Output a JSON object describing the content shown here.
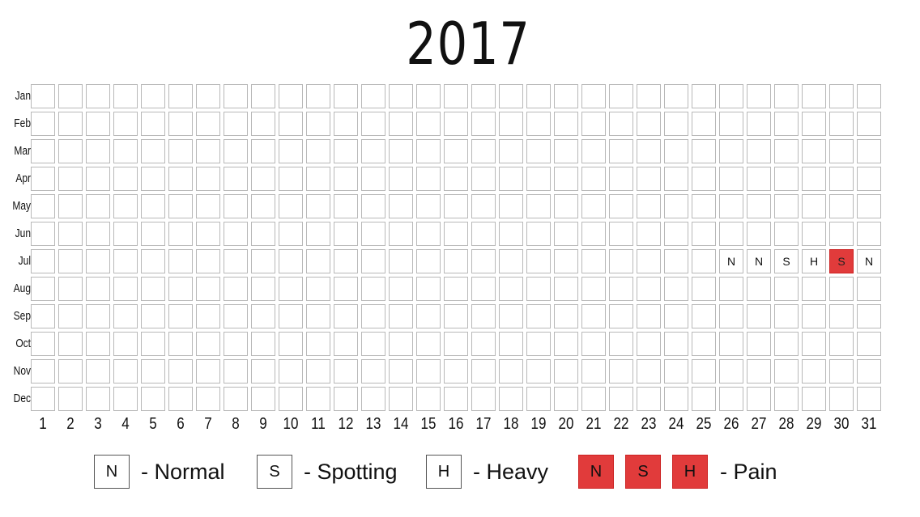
{
  "title": "2017",
  "months": [
    "Jan",
    "Feb",
    "Mar",
    "Apr",
    "May",
    "Jun",
    "Jul",
    "Aug",
    "Sep",
    "Oct",
    "Nov",
    "Dec"
  ],
  "days": [
    "1",
    "2",
    "3",
    "4",
    "5",
    "6",
    "7",
    "8",
    "9",
    "10",
    "11",
    "12",
    "13",
    "14",
    "15",
    "16",
    "17",
    "18",
    "19",
    "20",
    "21",
    "22",
    "23",
    "24",
    "25",
    "26",
    "27",
    "28",
    "29",
    "30",
    "31"
  ],
  "entries": [
    {
      "month": "Jul",
      "day": 26,
      "code": "N",
      "pain": false
    },
    {
      "month": "Jul",
      "day": 27,
      "code": "N",
      "pain": false
    },
    {
      "month": "Jul",
      "day": 28,
      "code": "S",
      "pain": false
    },
    {
      "month": "Jul",
      "day": 29,
      "code": "H",
      "pain": false
    },
    {
      "month": "Jul",
      "day": 30,
      "code": "S",
      "pain": true
    },
    {
      "month": "Jul",
      "day": 31,
      "code": "N",
      "pain": false
    }
  ],
  "legend": {
    "normal_code": "N",
    "normal_text": "- Normal",
    "spotting_code": "S",
    "spotting_text": "- Spotting",
    "heavy_code": "H",
    "heavy_text": "- Heavy",
    "pain_codes": [
      "N",
      "S",
      "H"
    ],
    "pain_text": "- Pain"
  },
  "colors": {
    "pain": "#e13b3b",
    "cell_border": "#b8b8b8"
  }
}
